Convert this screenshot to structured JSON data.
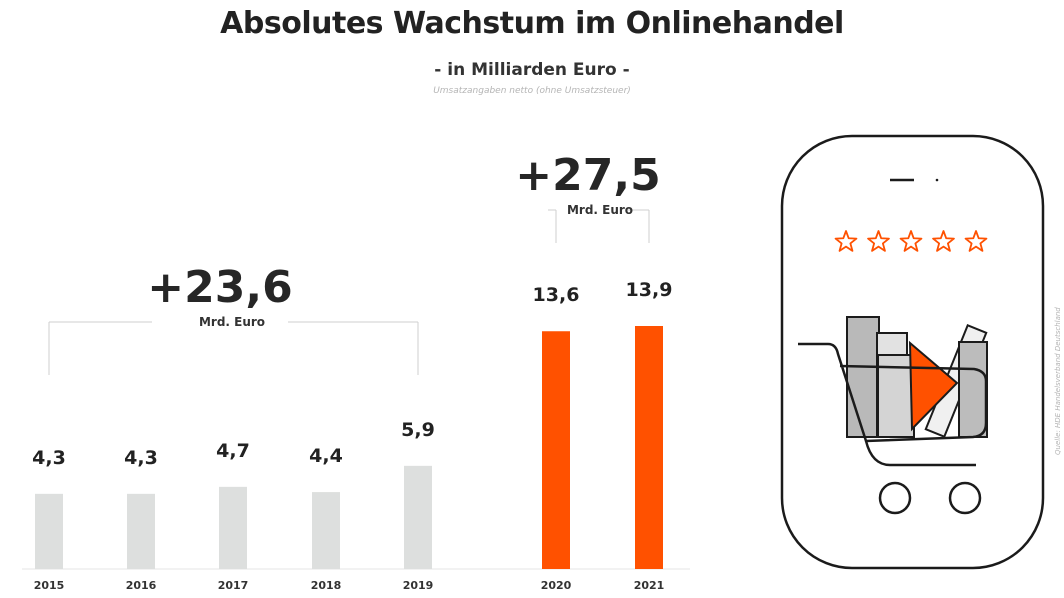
{
  "title": "Absolutes Wachstum im Onlinehandel",
  "subtitle": "- in Milliarden Euro -",
  "footnote": "Umsatzangaben netto (ohne Umsatzsteuer)",
  "source": "Quelle: HDE Handelsverband Deutschland",
  "chart_data": {
    "type": "bar",
    "categories": [
      "2015",
      "2016",
      "2017",
      "2018",
      "2019",
      "2020",
      "2021"
    ],
    "values": [
      4.3,
      4.3,
      4.7,
      4.4,
      5.9,
      13.6,
      13.9
    ],
    "value_labels": [
      "4,3",
      "4,3",
      "4,7",
      "4,4",
      "5,9",
      "13,6",
      "13,9"
    ],
    "highlight": [
      false,
      false,
      false,
      false,
      false,
      true,
      true
    ],
    "ylim": [
      0,
      15
    ],
    "grid": false,
    "legend": "none",
    "colors": {
      "normal": "#dddfde",
      "highlight": "#ff5100"
    },
    "annotations": [
      {
        "value": "+23,6",
        "unit": "Mrd. Euro",
        "range": [
          "2015",
          "2019"
        ]
      },
      {
        "value": "+27,5",
        "unit": "Mrd. Euro",
        "range": [
          "2020",
          "2021"
        ]
      }
    ]
  },
  "icons": {
    "phone": "smartphone-cart-icon",
    "stars": "star-rating-icon",
    "star_count": 5,
    "star_color": "#ff5100"
  }
}
